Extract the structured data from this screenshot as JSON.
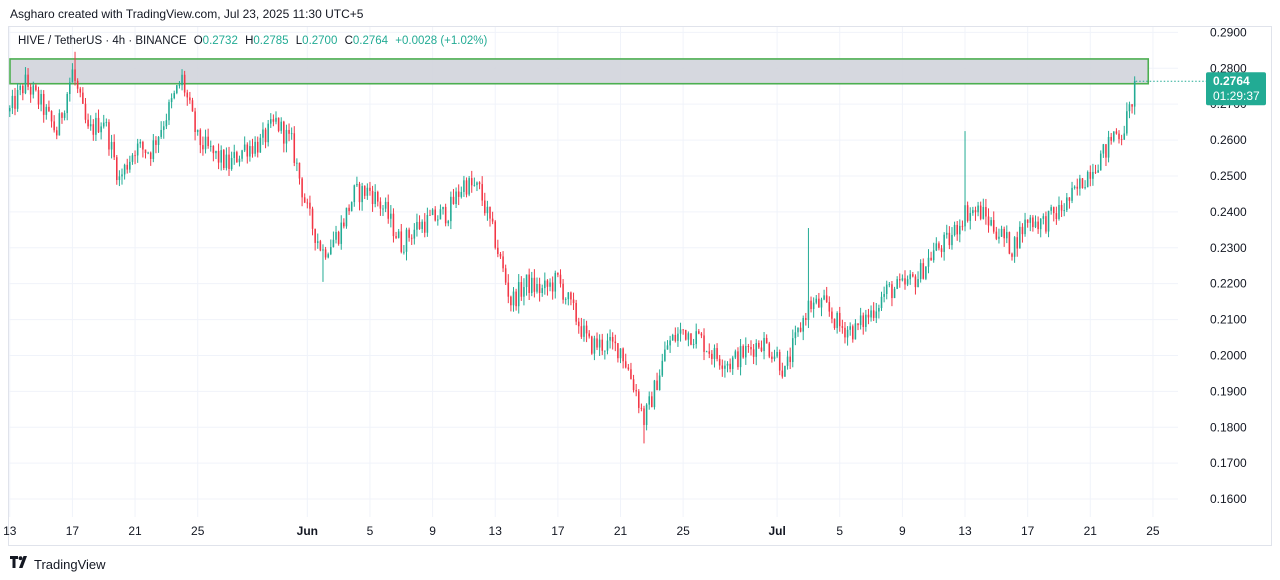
{
  "byline": "Asgharo created with TradingView.com, Jul 23, 2025 11:30 UTC+5",
  "legend": {
    "symbol": "HIVE / TetherUS · 4h · BINANCE",
    "o_label": "O",
    "o_value": "0.2732",
    "h_label": "H",
    "h_value": "0.2785",
    "l_label": "L",
    "l_value": "0.2700",
    "c_label": "C",
    "c_value": "0.2764",
    "change": "+0.0028 (+1.02%)"
  },
  "footer": {
    "brand": "TradingView"
  },
  "colors": {
    "up": "#22ab94",
    "down": "#f23645",
    "zone_fill": "#d1d4dc",
    "zone_border": "#4caf50",
    "badge": "#22ab94"
  },
  "chart_data": {
    "type": "candlestick",
    "title": "HIVE / TetherUS · 4h · BINANCE",
    "ylim": [
      0.155,
      0.2915
    ],
    "y_ticks": [
      0.29,
      0.28,
      0.27,
      0.26,
      0.25,
      0.24,
      0.23,
      0.22,
      0.21,
      0.2,
      0.19,
      0.18,
      0.17,
      0.16
    ],
    "y_tick_labels": [
      "0.2900",
      "0.2800",
      "0.2700",
      "0.2600",
      "0.2500",
      "0.2400",
      "0.2300",
      "0.2200",
      "0.2100",
      "0.2000",
      "0.1900",
      "0.1800",
      "0.1700",
      "0.1600"
    ],
    "x_ticks": [
      {
        "label": "13",
        "day": 0
      },
      {
        "label": "17",
        "day": 4
      },
      {
        "label": "21",
        "day": 8
      },
      {
        "label": "25",
        "day": 12
      },
      {
        "label": "Jun",
        "day": 19
      },
      {
        "label": "5",
        "day": 23
      },
      {
        "label": "9",
        "day": 27
      },
      {
        "label": "13",
        "day": 31
      },
      {
        "label": "17",
        "day": 35
      },
      {
        "label": "21",
        "day": 39
      },
      {
        "label": "25",
        "day": 43
      },
      {
        "label": "Jul",
        "day": 49
      },
      {
        "label": "5",
        "day": 53
      },
      {
        "label": "9",
        "day": 57
      },
      {
        "label": "13",
        "day": 61
      },
      {
        "label": "17",
        "day": 65
      },
      {
        "label": "21",
        "day": 69
      },
      {
        "label": "25",
        "day": 73
      }
    ],
    "day_range": [
      -0.05,
      74.6
    ],
    "candles_per_day": 6,
    "last_price": 0.2764,
    "last_price_label": "0.2764",
    "countdown": "01:29:37",
    "resistance_zone": [
      0.2757,
      0.2826
    ],
    "zone_end_day": 72.7,
    "anchors": [
      [
        0,
        0.268
      ],
      [
        1,
        0.276
      ],
      [
        2,
        0.27
      ],
      [
        3,
        0.262
      ],
      [
        4,
        0.279
      ],
      [
        5,
        0.262
      ],
      [
        6,
        0.266
      ],
      [
        7,
        0.249
      ],
      [
        8,
        0.258
      ],
      [
        9,
        0.257
      ],
      [
        10,
        0.267
      ],
      [
        11,
        0.277
      ],
      [
        12,
        0.26
      ],
      [
        13,
        0.256
      ],
      [
        14,
        0.253
      ],
      [
        15,
        0.258
      ],
      [
        16,
        0.259
      ],
      [
        17,
        0.265
      ],
      [
        18,
        0.259
      ],
      [
        19,
        0.24
      ],
      [
        19.5,
        0.234
      ],
      [
        20,
        0.229
      ],
      [
        21,
        0.234
      ],
      [
        22,
        0.245
      ],
      [
        23,
        0.246
      ],
      [
        24,
        0.24
      ],
      [
        25,
        0.231
      ],
      [
        26,
        0.236
      ],
      [
        27,
        0.238
      ],
      [
        28,
        0.24
      ],
      [
        29,
        0.248
      ],
      [
        30,
        0.246
      ],
      [
        31,
        0.232
      ],
      [
        32,
        0.215
      ],
      [
        33,
        0.22
      ],
      [
        34,
        0.218
      ],
      [
        35,
        0.221
      ],
      [
        36,
        0.212
      ],
      [
        37,
        0.203
      ],
      [
        38,
        0.203
      ],
      [
        39,
        0.202
      ],
      [
        40,
        0.19
      ],
      [
        40.5,
        0.182
      ],
      [
        41,
        0.188
      ],
      [
        42,
        0.203
      ],
      [
        43,
        0.207
      ],
      [
        44,
        0.205
      ],
      [
        45,
        0.2
      ],
      [
        46,
        0.198
      ],
      [
        47,
        0.201
      ],
      [
        48,
        0.204
      ],
      [
        49,
        0.2
      ],
      [
        49.5,
        0.195
      ],
      [
        50,
        0.202
      ],
      [
        51,
        0.214
      ],
      [
        52,
        0.214
      ],
      [
        53,
        0.208
      ],
      [
        54,
        0.207
      ],
      [
        55,
        0.212
      ],
      [
        56,
        0.218
      ],
      [
        57,
        0.219
      ],
      [
        58,
        0.222
      ],
      [
        59,
        0.229
      ],
      [
        60,
        0.232
      ],
      [
        61,
        0.24
      ],
      [
        62,
        0.24
      ],
      [
        63,
        0.235
      ],
      [
        64,
        0.23
      ],
      [
        65,
        0.238
      ],
      [
        66,
        0.237
      ],
      [
        67,
        0.24
      ],
      [
        68,
        0.245
      ],
      [
        69,
        0.252
      ],
      [
        70,
        0.257
      ],
      [
        70.5,
        0.262
      ],
      [
        71,
        0.262
      ],
      [
        71.5,
        0.268
      ],
      [
        71.9,
        0.2764
      ]
    ],
    "spikes": [
      {
        "day": 4.1,
        "high": 0.2846
      },
      {
        "day": 51.0,
        "high": 0.2355
      },
      {
        "day": 61.0,
        "high": 0.2625
      },
      {
        "day": 40.5,
        "low": 0.1755
      },
      {
        "day": 20.0,
        "low": 0.2205
      }
    ]
  }
}
